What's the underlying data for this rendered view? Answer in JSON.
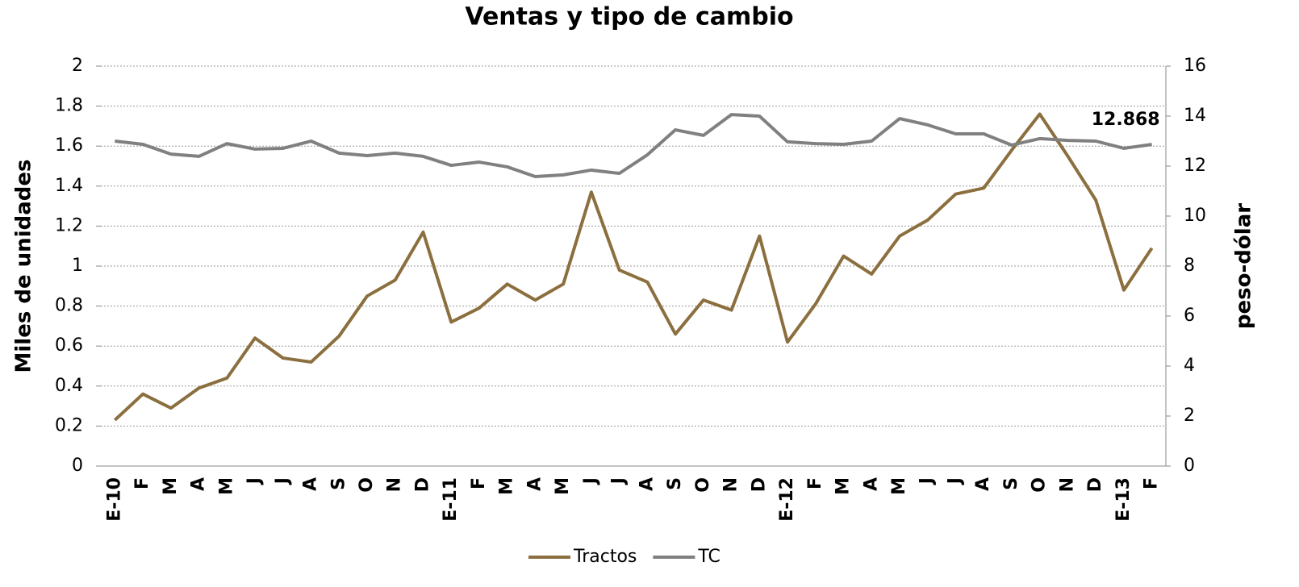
{
  "chart_data": {
    "type": "line",
    "title": "Ventas y tipo de cambio",
    "y_label": "Miles de unidades",
    "y2_label": "peso-dólar",
    "categories": [
      "E-10",
      "F",
      "M",
      "A",
      "M",
      "J",
      "J",
      "A",
      "S",
      "O",
      "N",
      "D",
      "E-11",
      "F",
      "M",
      "A",
      "M",
      "J",
      "J",
      "A",
      "S",
      "O",
      "N",
      "D",
      "E-12",
      "F",
      "M",
      "A",
      "M",
      "J",
      "J",
      "A",
      "S",
      "O",
      "N",
      "D",
      "E-13",
      "F"
    ],
    "series": [
      {
        "name": "Tractos",
        "color": "#8b6f3e",
        "axis": "y",
        "values": [
          0.23,
          0.36,
          0.29,
          0.39,
          0.44,
          0.64,
          0.54,
          0.52,
          0.65,
          0.85,
          0.93,
          1.17,
          0.72,
          0.79,
          0.91,
          0.83,
          0.91,
          1.37,
          0.98,
          0.92,
          0.66,
          0.83,
          0.78,
          1.15,
          0.62,
          0.81,
          1.05,
          0.96,
          1.15,
          1.23,
          1.36,
          1.39,
          1.58,
          1.76,
          1.55,
          1.33,
          0.88,
          1.09
        ]
      },
      {
        "name": "TC",
        "color": "#808080",
        "axis": "y2",
        "values": [
          13.0,
          12.87,
          12.48,
          12.39,
          12.9,
          12.68,
          12.71,
          13.0,
          12.52,
          12.42,
          12.52,
          12.39,
          12.03,
          12.16,
          11.97,
          11.58,
          11.65,
          11.84,
          11.71,
          12.45,
          13.45,
          13.23,
          14.06,
          14.0,
          12.97,
          12.9,
          12.87,
          13.0,
          13.9,
          13.65,
          13.29,
          13.29,
          12.84,
          13.1,
          13.03,
          13.0,
          12.71,
          12.868
        ],
        "value_labels": [
          null,
          null,
          null,
          null,
          null,
          null,
          null,
          null,
          null,
          null,
          null,
          null,
          null,
          null,
          null,
          null,
          null,
          null,
          null,
          null,
          null,
          null,
          null,
          null,
          null,
          null,
          null,
          null,
          null,
          null,
          null,
          null,
          null,
          null,
          null,
          null,
          null,
          "12.868"
        ]
      }
    ],
    "ylim": [
      0,
      2
    ],
    "yticks": [
      0,
      0.2,
      0.4,
      0.6,
      0.8,
      1,
      1.2,
      1.4,
      1.6,
      1.8,
      2
    ],
    "y2lim": [
      0,
      16
    ],
    "y2ticks": [
      0,
      2,
      4,
      6,
      8,
      10,
      12,
      14,
      16
    ],
    "grid": true,
    "legend": "bottom"
  }
}
